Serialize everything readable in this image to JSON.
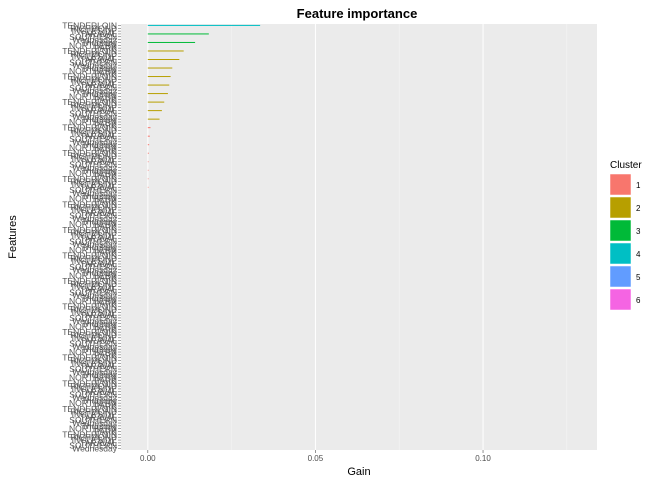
{
  "chart_data": {
    "type": "bar",
    "orientation": "horizontal",
    "title": "Feature importance",
    "xlabel": "Gain",
    "ylabel": "Features",
    "xlim": [
      -0.008,
      0.134
    ],
    "x_ticks": [
      0.0,
      0.05,
      0.1
    ],
    "x_tick_labels": [
      "0.00",
      "0.05",
      "0.10"
    ],
    "grid": true,
    "legend_title": "Cluster",
    "legend_position": "right",
    "clusters": [
      {
        "name": "1",
        "color": "#F8766D"
      },
      {
        "name": "2",
        "color": "#B79F00"
      },
      {
        "name": "3",
        "color": "#00BA38"
      },
      {
        "name": "4",
        "color": "#00BFC4"
      },
      {
        "name": "5",
        "color": "#619CFF"
      },
      {
        "name": "6",
        "color": "#F564E3"
      }
    ],
    "feature_count": 150,
    "visible_feature_labels": [
      "TENDERLOIN",
      "RICHMOND",
      "INGLESIDE",
      "TARAVAL",
      "SOUTHERN",
      "Wednesday",
      "Thursday",
      "NORTHERN",
      "PARK"
    ],
    "bars": [
      {
        "rank": 1,
        "gain": 0.0335,
        "cluster": "4"
      },
      {
        "rank": 4,
        "gain": 0.0182,
        "cluster": "3"
      },
      {
        "rank": 7,
        "gain": 0.0141,
        "cluster": "3"
      },
      {
        "rank": 10,
        "gain": 0.0107,
        "cluster": "2"
      },
      {
        "rank": 13,
        "gain": 0.0094,
        "cluster": "2"
      },
      {
        "rank": 16,
        "gain": 0.0073,
        "cluster": "2"
      },
      {
        "rank": 19,
        "gain": 0.0068,
        "cluster": "2"
      },
      {
        "rank": 22,
        "gain": 0.0064,
        "cluster": "2"
      },
      {
        "rank": 25,
        "gain": 0.006,
        "cluster": "2"
      },
      {
        "rank": 28,
        "gain": 0.0049,
        "cluster": "2"
      },
      {
        "rank": 31,
        "gain": 0.0042,
        "cluster": "2"
      },
      {
        "rank": 34,
        "gain": 0.0035,
        "cluster": "2"
      },
      {
        "rank": 37,
        "gain": 0.0008,
        "cluster": "1"
      },
      {
        "rank": 40,
        "gain": 0.0006,
        "cluster": "1"
      },
      {
        "rank": 43,
        "gain": 0.0004,
        "cluster": "1"
      },
      {
        "rank": 46,
        "gain": 0.0003,
        "cluster": "1"
      },
      {
        "rank": 49,
        "gain": 0.0002,
        "cluster": "1"
      },
      {
        "rank": 52,
        "gain": 0.0002,
        "cluster": "1"
      },
      {
        "rank": 55,
        "gain": 0.0001,
        "cluster": "1"
      },
      {
        "rank": 58,
        "gain": 0.0001,
        "cluster": "1"
      }
    ]
  }
}
